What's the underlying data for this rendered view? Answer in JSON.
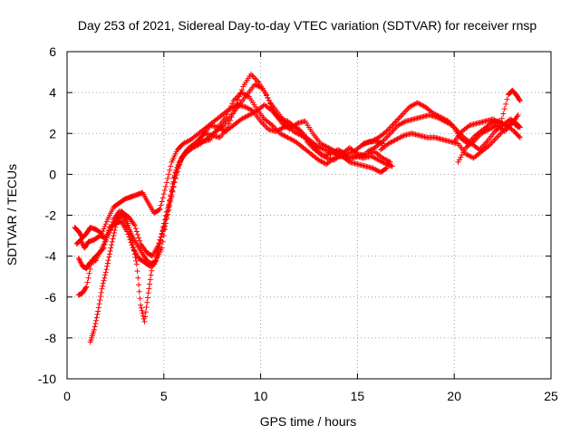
{
  "chart_data": {
    "type": "scatter",
    "title": "Day 253 of 2021, Sidereal Day-to-day VTEC variation (SDTVAR) for receiver rnsp",
    "xlabel": "GPS time / hours",
    "ylabel": "SDTVAR / TECUs",
    "xlim": [
      0,
      25
    ],
    "ylim": [
      -10,
      6
    ],
    "xticks": [
      0,
      5,
      10,
      15,
      20,
      25
    ],
    "yticks": [
      -10,
      -8,
      -6,
      -4,
      -2,
      0,
      2,
      4,
      6
    ],
    "grid": true,
    "marker": "+",
    "marker_color": "#ff0000",
    "series": [
      {
        "x": [
          0.4,
          0.6,
          0.8,
          1.0,
          1.2,
          1.5,
          1.8,
          2.1,
          2.4,
          2.7,
          3.0,
          3.3,
          3.6,
          3.9,
          4.2,
          4.5,
          4.8,
          5.1,
          5.4,
          5.7,
          6.0,
          6.4,
          6.8,
          7.2,
          7.6,
          8.0,
          8.4,
          8.8,
          9.2,
          9.6,
          10.0,
          10.4,
          10.8,
          11.2,
          11.6,
          12.0,
          12.4,
          12.8,
          13.2,
          13.6,
          14.0,
          14.4,
          14.8,
          15.2,
          15.6,
          16.0,
          16.3
        ],
        "y": [
          -2.6,
          -2.8,
          -3.1,
          -2.9,
          -2.6,
          -2.7,
          -2.9,
          -2.2,
          -1.6,
          -1.4,
          -1.2,
          -1.1,
          -1.0,
          -0.9,
          -1.4,
          -1.9,
          -1.7,
          -0.6,
          0.6,
          1.2,
          1.5,
          1.7,
          2.0,
          2.3,
          2.6,
          2.9,
          3.2,
          3.4,
          3.3,
          3.1,
          2.6,
          2.2,
          2.1,
          2.3,
          2.4,
          2.2,
          1.6,
          1.2,
          0.9,
          1.0,
          1.2,
          1.0,
          1.1,
          1.4,
          1.6,
          1.6,
          1.5
        ]
      },
      {
        "x": [
          0.5,
          0.7,
          0.9,
          1.1,
          1.4,
          1.7,
          2.0,
          2.3,
          2.6,
          2.9,
          3.2,
          3.5,
          3.8,
          4.1,
          4.4,
          4.7,
          5.0,
          5.3,
          5.6,
          5.9,
          6.2,
          6.6,
          7.0,
          7.4,
          7.8,
          8.2,
          8.6,
          9.0,
          9.4,
          9.8,
          10.2,
          10.6,
          11.0,
          11.4,
          11.8,
          12.2,
          12.6,
          13.0,
          13.4,
          13.8,
          14.2,
          14.6,
          15.0,
          15.4,
          15.8,
          16.2,
          16.5
        ],
        "y": [
          -3.4,
          -3.2,
          -3.6,
          -3.3,
          -3.2,
          -3.0,
          -3.1,
          -2.6,
          -2.2,
          -1.9,
          -2.1,
          -2.5,
          -3.4,
          -3.8,
          -4.0,
          -3.5,
          -2.6,
          -1.4,
          -0.2,
          0.8,
          1.2,
          1.4,
          1.6,
          1.7,
          2.3,
          2.8,
          3.6,
          4.0,
          3.8,
          3.2,
          2.7,
          2.4,
          2.0,
          1.8,
          1.6,
          1.3,
          1.0,
          0.7,
          0.5,
          0.8,
          0.9,
          0.6,
          0.5,
          0.4,
          0.3,
          0.1,
          0.3
        ]
      },
      {
        "x": [
          0.6,
          0.8,
          1.0,
          1.2,
          1.5,
          1.8,
          2.1,
          2.4,
          2.7,
          3.0,
          3.3,
          3.6,
          3.9,
          4.2,
          4.5,
          4.8,
          5.1,
          5.4,
          5.7,
          6.0,
          6.3,
          6.7,
          7.1,
          7.5,
          7.9,
          8.3,
          8.7,
          9.1,
          9.5,
          9.9,
          10.3,
          10.7,
          11.1,
          11.5,
          11.9,
          12.3,
          12.7,
          13.1,
          13.5,
          13.9,
          14.3,
          14.7,
          15.1,
          15.5,
          15.9,
          16.3,
          16.7
        ],
        "y": [
          -4.1,
          -4.5,
          -4.6,
          -4.3,
          -4.2,
          -3.6,
          -3.0,
          -2.2,
          -1.8,
          -2.3,
          -2.9,
          -3.4,
          -3.9,
          -4.3,
          -4.4,
          -3.2,
          -2.4,
          -1.1,
          0.3,
          0.9,
          1.3,
          1.6,
          2.0,
          1.9,
          1.8,
          2.3,
          3.3,
          4.3,
          4.9,
          4.5,
          3.9,
          3.0,
          2.5,
          2.2,
          2.5,
          2.6,
          2.0,
          1.5,
          1.3,
          1.1,
          0.9,
          0.8,
          0.9,
          1.0,
          1.1,
          0.8,
          0.6
        ]
      },
      {
        "x": [
          0.6,
          0.8,
          1.0,
          1.3,
          1.6,
          1.9,
          2.2,
          2.5,
          2.8,
          3.1,
          3.4,
          3.7,
          4.0,
          4.3,
          4.6,
          4.9,
          5.2,
          5.5,
          5.8,
          6.1,
          6.5,
          6.9,
          7.3,
          7.7,
          8.1,
          8.5,
          8.9,
          9.3,
          9.7,
          10.1,
          10.5,
          10.9,
          11.3,
          11.7,
          12.1,
          12.5,
          12.9,
          13.3,
          13.7,
          14.1,
          14.5,
          14.9,
          15.3,
          15.7,
          16.1,
          16.5,
          16.8
        ],
        "y": [
          -5.9,
          -5.8,
          -5.5,
          -4.2,
          -3.9,
          -3.6,
          -2.6,
          -2.4,
          -2.3,
          -2.8,
          -3.6,
          -4.1,
          -4.3,
          -4.5,
          -4.2,
          -3.6,
          -1.8,
          -0.2,
          0.6,
          1.0,
          1.3,
          1.5,
          1.8,
          2.1,
          2.4,
          2.9,
          3.4,
          3.9,
          4.4,
          4.2,
          3.5,
          3.0,
          2.5,
          2.1,
          1.9,
          1.7,
          1.4,
          1.2,
          1.1,
          0.9,
          0.8,
          0.9,
          0.8,
          0.9,
          0.7,
          0.5,
          0.4
        ]
      },
      {
        "x": [
          1.2,
          1.4,
          1.6,
          1.8,
          2.0,
          2.2,
          2.4,
          2.6,
          2.8,
          3.0,
          3.2,
          3.4,
          3.6,
          3.8,
          4.0,
          4.2,
          4.4,
          4.6,
          4.8,
          5.0,
          5.3,
          5.6,
          5.9,
          6.2,
          6.6,
          7.0,
          7.4,
          7.8,
          8.2,
          8.6,
          9.0,
          9.4,
          9.8,
          10.2,
          10.6,
          11.0,
          11.4,
          11.8,
          12.2,
          12.6,
          13.0,
          13.4,
          13.8,
          14.2,
          14.6,
          15.0,
          15.4
        ],
        "y": [
          -8.2,
          -7.6,
          -6.7,
          -5.6,
          -4.8,
          -3.9,
          -3.0,
          -2.2,
          -1.8,
          -2.0,
          -2.6,
          -3.4,
          -4.4,
          -6.4,
          -7.2,
          -5.8,
          -4.5,
          -4.2,
          -3.4,
          -2.4,
          -1.3,
          0.1,
          0.8,
          1.1,
          1.4,
          1.9,
          2.4,
          2.3,
          2.1,
          2.4,
          2.7,
          2.9,
          3.1,
          3.4,
          3.1,
          2.7,
          2.6,
          2.3,
          2.0,
          1.5,
          1.1,
          0.8,
          0.7,
          1.0,
          1.3,
          1.0,
          0.9
        ]
      },
      {
        "x": [
          15.3,
          15.7,
          16.1,
          16.5,
          16.9,
          17.3,
          17.7,
          18.1,
          18.5,
          18.9,
          19.3,
          19.7,
          20.1,
          20.5,
          20.9,
          21.3,
          21.7,
          22.1,
          22.5,
          22.9,
          23.2,
          23.4
        ],
        "y": [
          1.5,
          1.6,
          1.8,
          2.1,
          2.5,
          2.9,
          3.3,
          3.5,
          3.3,
          3.0,
          2.8,
          2.6,
          2.2,
          1.8,
          1.5,
          1.2,
          1.6,
          2.1,
          2.4,
          2.7,
          2.5,
          2.3
        ]
      },
      {
        "x": [
          15.5,
          15.9,
          16.3,
          16.7,
          17.1,
          17.5,
          17.9,
          18.3,
          18.7,
          19.1,
          19.5,
          19.9,
          20.3,
          20.7,
          21.1,
          21.5,
          21.9,
          22.3,
          22.7,
          23.1,
          23.4
        ],
        "y": [
          1.1,
          1.3,
          1.6,
          2.0,
          2.4,
          2.6,
          2.7,
          2.8,
          2.9,
          2.8,
          2.6,
          2.4,
          1.8,
          1.5,
          1.9,
          2.2,
          2.5,
          2.6,
          2.4,
          2.1,
          1.8
        ]
      },
      {
        "x": [
          16.2,
          16.6,
          17.0,
          17.4,
          17.8,
          18.2,
          18.6,
          19.0,
          19.4,
          19.8,
          20.2,
          20.6,
          21.0,
          21.4,
          21.8,
          22.2,
          22.6,
          23.0,
          23.3
        ],
        "y": [
          1.2,
          1.5,
          1.7,
          1.9,
          2.0,
          1.9,
          1.8,
          1.8,
          1.7,
          1.6,
          1.5,
          1.0,
          0.8,
          1.1,
          1.4,
          1.8,
          2.2,
          2.6,
          2.3
        ]
      },
      {
        "x": [
          20.0,
          20.4,
          20.8,
          21.2,
          21.6,
          22.0,
          22.4,
          22.8,
          23.0,
          23.2,
          23.4
        ],
        "y": [
          1.6,
          2.1,
          2.4,
          2.5,
          2.6,
          2.7,
          2.5,
          3.9,
          4.1,
          3.9,
          3.6
        ]
      },
      {
        "x": [
          20.2,
          20.6,
          21.0,
          21.4,
          21.8,
          22.2,
          22.6,
          23.0,
          23.3
        ],
        "y": [
          0.6,
          1.3,
          1.6,
          2.0,
          2.2,
          2.4,
          2.1,
          2.5,
          2.9
        ]
      }
    ]
  }
}
